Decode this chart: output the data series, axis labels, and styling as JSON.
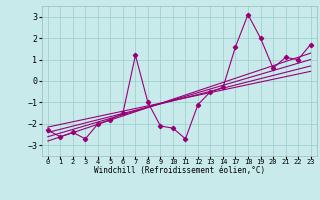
{
  "xlabel": "Windchill (Refroidissement éolien,°C)",
  "bg_color": "#c8eaea",
  "line_color": "#990077",
  "grid_color": "#99cccc",
  "yticks": [
    -3,
    -2,
    -1,
    0,
    1,
    2,
    3
  ],
  "ylim": [
    -3.5,
    3.5
  ],
  "x_labels": [
    "0",
    "1",
    "2",
    "3",
    "4",
    "5",
    "6",
    "7",
    "8",
    "9",
    "10",
    "11",
    "12",
    "13",
    "14",
    "17",
    "18",
    "19",
    "20",
    "21",
    "22",
    "23"
  ],
  "x_positions": [
    0,
    1,
    2,
    3,
    4,
    5,
    6,
    7,
    8,
    9,
    10,
    11,
    12,
    13,
    14,
    15,
    16,
    17,
    18,
    19,
    20,
    21
  ],
  "xlim": [
    -0.5,
    21.5
  ],
  "main_x": [
    0,
    1,
    2,
    3,
    4,
    5,
    6,
    7,
    8,
    9,
    10,
    11,
    12,
    13,
    14,
    15,
    16,
    17,
    18,
    19,
    20,
    21
  ],
  "main_y": [
    -2.3,
    -2.6,
    -2.4,
    -2.7,
    -2.0,
    -1.8,
    -1.5,
    1.2,
    -1.0,
    -2.1,
    -2.2,
    -2.7,
    -1.1,
    -0.5,
    -0.3,
    1.6,
    3.1,
    2.0,
    0.6,
    1.1,
    1.0,
    1.7
  ],
  "reg_lines": [
    {
      "x": [
        0,
        21
      ],
      "y": [
        -2.8,
        1.3
      ]
    },
    {
      "x": [
        0,
        21
      ],
      "y": [
        -2.6,
        1.0
      ]
    },
    {
      "x": [
        0,
        21
      ],
      "y": [
        -2.4,
        0.7
      ]
    },
    {
      "x": [
        0,
        21
      ],
      "y": [
        -2.15,
        0.45
      ]
    }
  ]
}
